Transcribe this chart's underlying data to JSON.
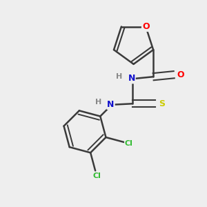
{
  "background_color": "#eeeeee",
  "bond_color": "#3a3a3a",
  "atom_colors": {
    "O": "#ff0000",
    "N": "#1111cc",
    "S": "#cccc00",
    "Cl": "#33bb33",
    "H": "#888888",
    "C": "#3a3a3a"
  },
  "figsize": [
    3.0,
    3.0
  ],
  "dpi": 100
}
